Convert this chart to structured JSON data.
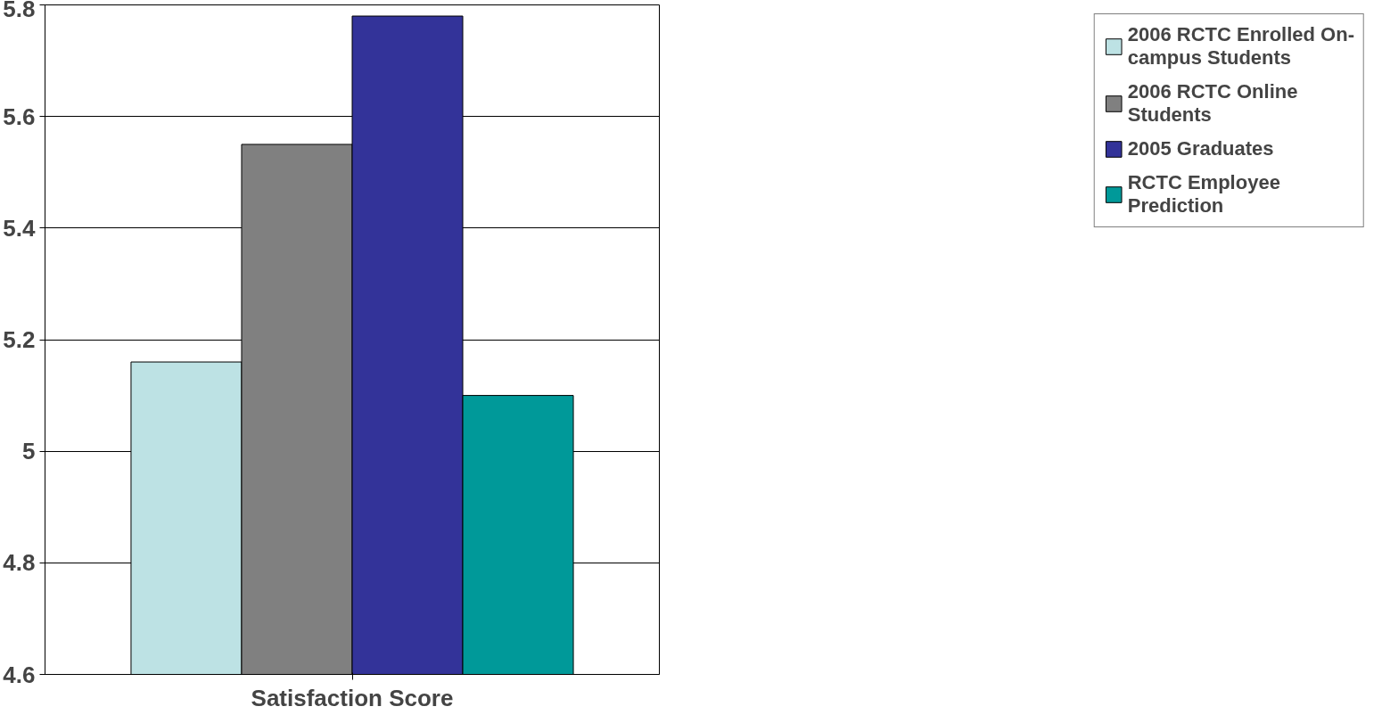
{
  "chart_data": {
    "type": "bar",
    "categories": [
      "Satisfaction Score"
    ],
    "series": [
      {
        "name": "2006 RCTC Enrolled On-campus Students",
        "color": "#bde2e4",
        "values": [
          5.16
        ]
      },
      {
        "name": "2006 RCTC Online Students",
        "color": "#808080",
        "values": [
          5.55
        ]
      },
      {
        "name": "2005 Graduates",
        "color": "#333399",
        "values": [
          5.78
        ]
      },
      {
        "name": "RCTC Employee Prediction",
        "color": "#009999",
        "values": [
          5.1
        ]
      }
    ],
    "ylim": [
      4.6,
      5.8
    ],
    "yticks": [
      4.6,
      4.8,
      5,
      5.2,
      5.4,
      5.6,
      5.8
    ],
    "grid": "y",
    "legend": "right"
  }
}
